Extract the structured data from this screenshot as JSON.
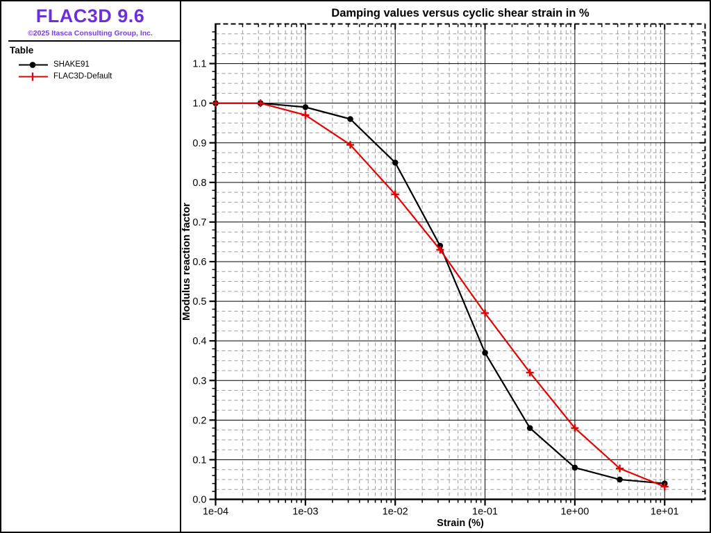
{
  "branding": {
    "logo_text": "FLAC3D 9.6",
    "copyright": "©2025 Itasca Consulting Group, Inc.",
    "logo_color": "#6B2FDC",
    "copyright_color": "#7D3BE8"
  },
  "legend": {
    "title": "Table",
    "items": [
      {
        "label": "SHAKE91",
        "color": "#000000",
        "marker": "circle"
      },
      {
        "label": "FLAC3D-Default",
        "color": "#E00000",
        "marker": "plus"
      }
    ]
  },
  "chart_data": {
    "type": "line",
    "title": "Damping values versus cyclic shear strain in %",
    "xlabel": "Strain (%)",
    "ylabel": "Modulus reaction factor",
    "x_scale": "log",
    "xlim": [
      0.0001,
      28.2
    ],
    "ylim": [
      0.0,
      1.2
    ],
    "x_ticks": [
      {
        "value": 0.0001,
        "label": "1e-04"
      },
      {
        "value": 0.001,
        "label": "1e-03"
      },
      {
        "value": 0.01,
        "label": "1e-02"
      },
      {
        "value": 0.1,
        "label": "1e-01"
      },
      {
        "value": 1.0,
        "label": "1e+00"
      },
      {
        "value": 10.0,
        "label": "1e+01"
      }
    ],
    "y_ticks": [
      {
        "value": 0.0,
        "label": "0.0"
      },
      {
        "value": 0.1,
        "label": "0.1"
      },
      {
        "value": 0.2,
        "label": "0.2"
      },
      {
        "value": 0.3,
        "label": "0.3"
      },
      {
        "value": 0.4,
        "label": "0.4"
      },
      {
        "value": 0.5,
        "label": "0.5"
      },
      {
        "value": 0.6,
        "label": "0.6"
      },
      {
        "value": 0.7,
        "label": "0.7"
      },
      {
        "value": 0.8,
        "label": "0.8"
      },
      {
        "value": 0.9,
        "label": "0.9"
      },
      {
        "value": 1.0,
        "label": "1.0"
      },
      {
        "value": 1.1,
        "label": "1.1"
      }
    ],
    "grid": {
      "major_color": "#000000",
      "minor_color": "#9C9C9C",
      "minor_style": "dashed",
      "x_minor_multiples": [
        2,
        3,
        4,
        5,
        6,
        7,
        8,
        9
      ],
      "y_minor_grid_step": 0.025,
      "y_minor_tick_step": 0.02
    },
    "legend_position": "left-panel",
    "x": [
      0.0001,
      0.000316,
      0.001,
      0.00316,
      0.01,
      0.0316,
      0.1,
      0.316,
      1.0,
      3.16,
      10.0
    ],
    "series": [
      {
        "name": "SHAKE91",
        "color": "#000000",
        "marker": "circle",
        "values": [
          1.0,
          1.0,
          0.99,
          0.96,
          0.85,
          0.64,
          0.37,
          0.18,
          0.08,
          0.05,
          0.04
        ]
      },
      {
        "name": "FLAC3D-Default",
        "color": "#E00000",
        "marker": "plus",
        "values": [
          1.0,
          1.0,
          0.97,
          0.895,
          0.77,
          0.63,
          0.47,
          0.32,
          0.18,
          0.078,
          0.032
        ]
      }
    ]
  }
}
